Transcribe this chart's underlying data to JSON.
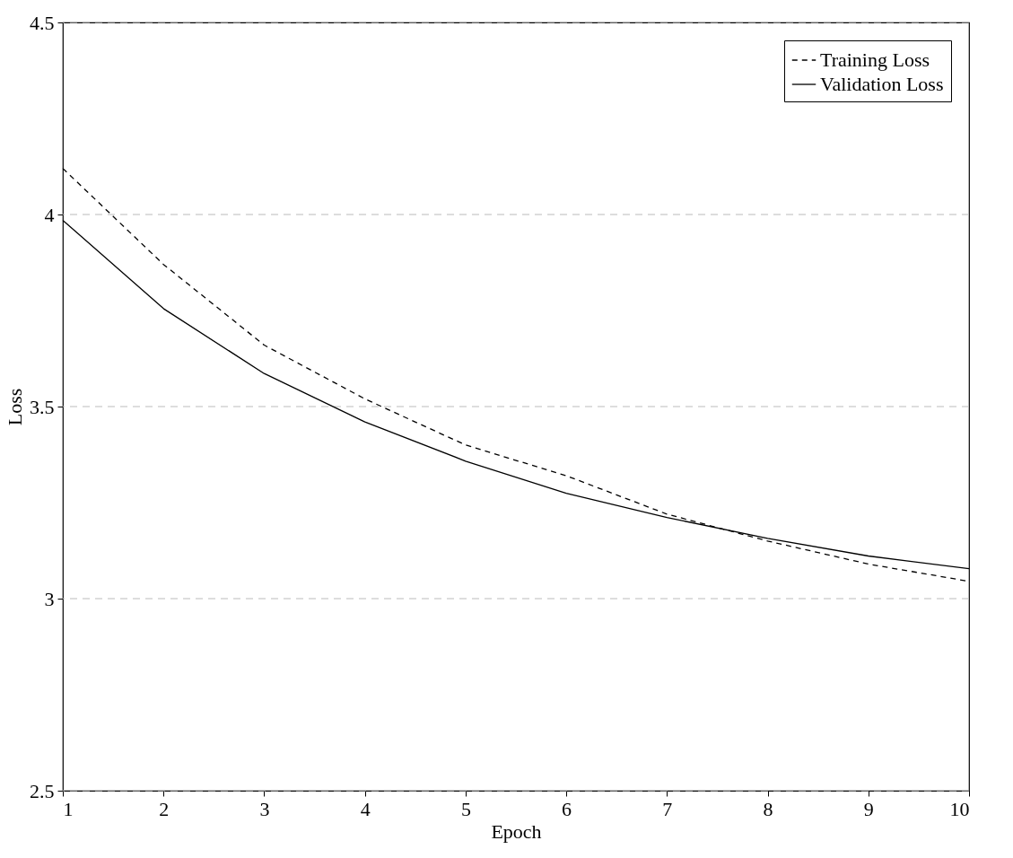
{
  "chart_data": {
    "type": "line",
    "xlabel": "Epoch",
    "ylabel": "Loss",
    "x": [
      1,
      2,
      3,
      4,
      5,
      6,
      7,
      8,
      9,
      10
    ],
    "series": [
      {
        "name": "Training Loss",
        "color": "#000000",
        "line_style": "dashed",
        "values": [
          4.12,
          3.87,
          3.66,
          3.52,
          3.4,
          3.32,
          3.22,
          3.15,
          3.09,
          3.045
        ]
      },
      {
        "name": "Validation Loss",
        "color": "#000000",
        "line_style": "solid",
        "values": [
          3.985,
          3.755,
          3.586,
          3.46,
          3.358,
          3.274,
          3.211,
          3.157,
          3.111,
          3.078
        ]
      }
    ],
    "xlim": [
      1,
      10
    ],
    "xticks": [
      1,
      2,
      3,
      4,
      5,
      6,
      7,
      8,
      9,
      10
    ],
    "ylim": [
      2.5,
      4.5
    ],
    "yticks": [
      2.5,
      {
        "value": 3,
        "label": "3"
      },
      3.5,
      {
        "value": 4,
        "label": "4"
      },
      4.5
    ],
    "grid": "y",
    "legend": "top right",
    "marker": "none"
  }
}
